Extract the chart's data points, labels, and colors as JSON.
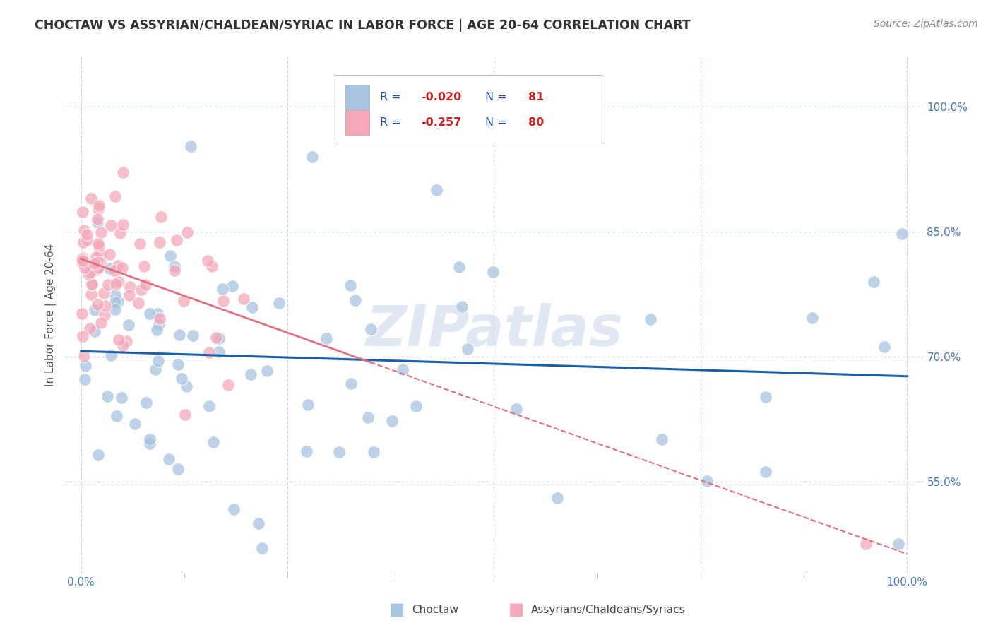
{
  "title": "CHOCTAW VS ASSYRIAN/CHALDEAN/SYRIAC IN LABOR FORCE | AGE 20-64 CORRELATION CHART",
  "source": "Source: ZipAtlas.com",
  "ylabel": "In Labor Force | Age 20-64",
  "xlim": [
    -0.02,
    1.02
  ],
  "ylim": [
    0.44,
    1.06
  ],
  "ytick_labels": [
    "55.0%",
    "70.0%",
    "85.0%",
    "100.0%"
  ],
  "ytick_values": [
    0.55,
    0.7,
    0.85,
    1.0
  ],
  "xtick_labels": [
    "0.0%",
    "100.0%"
  ],
  "xtick_values": [
    0.0,
    1.0
  ],
  "choctaw_color": "#a8c4e0",
  "assyrian_color": "#f4a8b8",
  "trend_choctaw_color": "#1a5fa8",
  "trend_assyrian_color": "#e07080",
  "background_color": "#ffffff",
  "grid_color": "#c8d4e8",
  "watermark": "ZIPatlas",
  "legend_R_choctaw": "-0.020",
  "legend_N_choctaw": "81",
  "legend_R_assyrian": "-0.257",
  "legend_N_assyrian": "80",
  "tick_color": "#4a7ab5",
  "label_color": "#555555"
}
